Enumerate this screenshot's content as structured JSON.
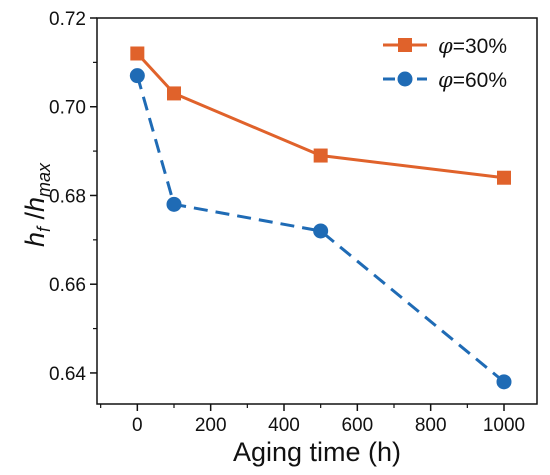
{
  "chart_data": {
    "type": "line",
    "xlabel": "Aging time (h)",
    "ylabel": {
      "h": "h",
      "f": "f",
      "slash": " /",
      "max": "max"
    },
    "xlim": [
      -110,
      1090
    ],
    "ylim": [
      0.633,
      0.72
    ],
    "xticks": [
      0,
      200,
      400,
      600,
      800,
      1000
    ],
    "yticks": [
      0.64,
      0.66,
      0.68,
      0.7,
      0.72
    ],
    "xtick_labels": [
      "0",
      "200",
      "400",
      "600",
      "800",
      "1000"
    ],
    "ytick_labels": [
      "0.64",
      "0.66",
      "0.68",
      "0.70",
      "0.72"
    ],
    "grid": false,
    "legend_position": "top-right",
    "series": [
      {
        "symbol": "φ",
        "suffix": "=30%",
        "color": "#e0622b",
        "marker": "square",
        "line_style": "solid",
        "x": [
          0,
          100,
          500,
          1000
        ],
        "y": [
          0.712,
          0.703,
          0.689,
          0.684
        ]
      },
      {
        "symbol": "φ",
        "suffix": "=60%",
        "color": "#1f6bb5",
        "marker": "circle",
        "line_style": "dashed",
        "x": [
          0,
          100,
          500,
          1000
        ],
        "y": [
          0.707,
          0.678,
          0.672,
          0.638
        ]
      }
    ]
  }
}
